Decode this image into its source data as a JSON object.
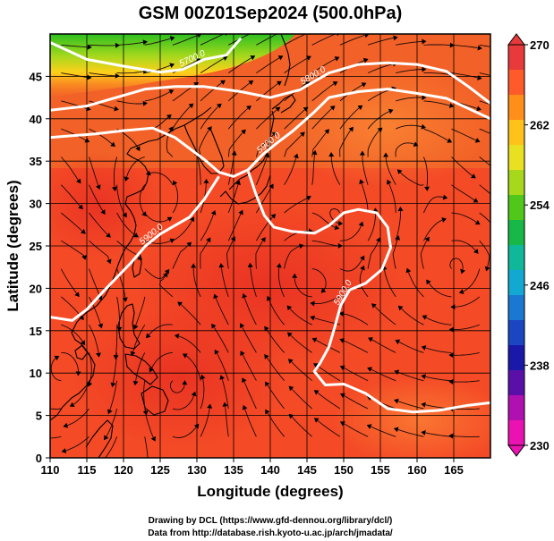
{
  "title": "GSM 00Z01Sep2024 (500.0hPa)",
  "map": {
    "lon_range": [
      110,
      170
    ],
    "lat_range": [
      0,
      50
    ],
    "x_label": "Longitude (degrees)",
    "y_label": "Latitude  (degrees)",
    "x_ticks": [
      "110",
      "115",
      "120",
      "125",
      "130",
      "135",
      "140",
      "145",
      "150",
      "155",
      "160",
      "165"
    ],
    "y_ticks": [
      "0",
      "5",
      "10",
      "15",
      "20",
      "25",
      "30",
      "35",
      "40",
      "45"
    ],
    "grid": "5-degree lat/lon grid",
    "field": "temperature shading with streamlines",
    "contours": [
      {
        "label": "5700.0",
        "points": [
          [
            110,
            49
          ],
          [
            115,
            47
          ],
          [
            120,
            46.2
          ],
          [
            125,
            45.5
          ],
          [
            128,
            45.8
          ],
          [
            131,
            47
          ],
          [
            134,
            47.5
          ],
          [
            136,
            49.5
          ]
        ]
      },
      {
        "label": "5800.0",
        "points": [
          [
            110,
            41
          ],
          [
            115,
            41.5
          ],
          [
            119,
            42.5
          ],
          [
            123,
            43.5
          ],
          [
            127,
            43.8
          ],
          [
            131,
            43.8
          ],
          [
            136,
            43.2
          ],
          [
            140,
            42.5
          ],
          [
            144,
            43.4
          ],
          [
            148,
            45.4
          ],
          [
            152,
            46.4
          ],
          [
            156,
            46.6
          ],
          [
            160,
            46.4
          ],
          [
            164,
            45.6
          ],
          [
            167,
            43.8
          ],
          [
            170,
            41.8
          ]
        ]
      },
      {
        "label": "5900.0",
        "points": [
          [
            110,
            37.8
          ],
          [
            113,
            38
          ],
          [
            116,
            38.2
          ],
          [
            120,
            38.6
          ],
          [
            124,
            38.9
          ],
          [
            127,
            37.8
          ],
          [
            129,
            36.5
          ],
          [
            131,
            35.2
          ],
          [
            133,
            33.7
          ],
          [
            135,
            33.2
          ],
          [
            137,
            34
          ],
          [
            139,
            35.8
          ],
          [
            141,
            37.2
          ],
          [
            143,
            38.5
          ],
          [
            146,
            40.8
          ],
          [
            148,
            42.5
          ],
          [
            152,
            43.2
          ],
          [
            156,
            43.5
          ],
          [
            160,
            43
          ],
          [
            164,
            42.4
          ],
          [
            167,
            41.2
          ],
          [
            170,
            40
          ]
        ]
      },
      {
        "label": "5900.0",
        "points": [
          [
            110,
            16.6
          ],
          [
            113,
            16.2
          ],
          [
            115,
            17.5
          ],
          [
            117,
            19.4
          ],
          [
            119,
            21.2
          ],
          [
            121,
            23
          ],
          [
            123,
            25
          ],
          [
            125,
            26.4
          ],
          [
            127,
            27.4
          ],
          [
            129,
            28.4
          ],
          [
            131,
            30.5
          ],
          [
            133,
            33.2
          ]
        ]
      },
      {
        "label": "5900.0",
        "points": [
          [
            137,
            33.8
          ],
          [
            138,
            31.2
          ],
          [
            139.2,
            28.6
          ],
          [
            140.5,
            27.2
          ],
          [
            143,
            26.7
          ],
          [
            146,
            26.5
          ],
          [
            148,
            27.4
          ],
          [
            150,
            28.9
          ],
          [
            152,
            29.3
          ],
          [
            154.5,
            28.9
          ],
          [
            156,
            27.2
          ],
          [
            156.4,
            24.8
          ],
          [
            155.2,
            22.2
          ],
          [
            153,
            20.6
          ],
          [
            150.8,
            19.8
          ],
          [
            149.6,
            18
          ],
          [
            148.8,
            15.5
          ],
          [
            148,
            13.1
          ],
          [
            146.8,
            11.2
          ],
          [
            146,
            10.2
          ],
          [
            147.5,
            8.6
          ],
          [
            150,
            8.7
          ],
          [
            153,
            7.6
          ],
          [
            156,
            5.8
          ],
          [
            159.5,
            5.4
          ],
          [
            163,
            5.6
          ],
          [
            167,
            6.2
          ],
          [
            170,
            6.5
          ]
        ]
      }
    ]
  },
  "colorbar": {
    "ticks": [
      "270",
      "262",
      "254",
      "246",
      "238",
      "230"
    ],
    "colors": [
      "#e83a3a",
      "#ff5a2a",
      "#ff8f1a",
      "#ffc21a",
      "#e8e020",
      "#a8d81c",
      "#50c81a",
      "#18b848",
      "#10b89a",
      "#12a8d2",
      "#1a78d2",
      "#1a46c2",
      "#1a18a8",
      "#5a10a8",
      "#b010b0",
      "#ea12b0"
    ]
  },
  "credits": {
    "line1": "Drawing by DCL (https://www.gfd-dennou.org/library/dcl/)",
    "line2": "Data from http://database.rish.kyoto-u.ac.jp/arch/jmadata/"
  }
}
